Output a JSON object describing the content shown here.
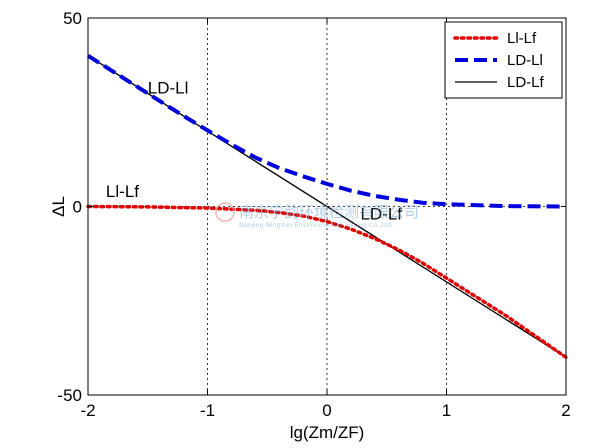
{
  "chart_data": {
    "type": "line",
    "xlabel": "lg(Zm/ZF)",
    "ylabel": "ΔL",
    "xlim": [
      -2,
      2
    ],
    "ylim": [
      -50,
      50
    ],
    "xticks": [
      -2,
      -1,
      0,
      1,
      2
    ],
    "yticks": [
      50,
      0,
      -50
    ],
    "grid": "dotted vertical lines at x ticks and dotted horizontal line at y=0",
    "legend_position": "top-right",
    "series": [
      {
        "name": "Ll-Lf",
        "color": "#e00000",
        "style": "dotted",
        "x": [
          -2,
          -1.5,
          -1.2,
          -1,
          -0.8,
          -0.6,
          -0.4,
          -0.2,
          0,
          0.2,
          0.4,
          0.6,
          0.8,
          1,
          1.2,
          1.5,
          2
        ],
        "y": [
          0,
          -0.1,
          -0.3,
          -0.4,
          -0.7,
          -1.0,
          -1.6,
          -2.5,
          -4.0,
          -6.0,
          -8.5,
          -11.5,
          -15.0,
          -19.0,
          -23.0,
          -29.0,
          -40.0
        ]
      },
      {
        "name": "LD-Ll",
        "color": "#0000dd",
        "style": "dashed",
        "x": [
          -2,
          -1.5,
          -1.2,
          -1,
          -0.8,
          -0.6,
          -0.4,
          -0.2,
          0,
          0.2,
          0.4,
          0.6,
          0.8,
          1,
          1.2,
          1.5,
          2
        ],
        "y": [
          40,
          30,
          24,
          20.2,
          16.5,
          13.0,
          10.2,
          8.0,
          6.0,
          4.2,
          2.8,
          1.8,
          1.0,
          0.6,
          0.4,
          0.1,
          0
        ]
      },
      {
        "name": "LD-Lf",
        "color": "#000000",
        "style": "solid",
        "x": [
          -2,
          2
        ],
        "y": [
          40,
          -40
        ]
      }
    ],
    "annotations": [
      {
        "text": "LD-Ll",
        "x": -1.5,
        "y": 30
      },
      {
        "text": "Ll-Lf",
        "x": -1.85,
        "y": 2.5
      },
      {
        "text": "LD-Lf",
        "x": 0.28,
        "y": -3.5
      }
    ],
    "watermark": {
      "main": "南京宁韵环境检测有限公司",
      "sub": "Nanjing NingYun Environmental Testing Co.,Ltd"
    }
  }
}
